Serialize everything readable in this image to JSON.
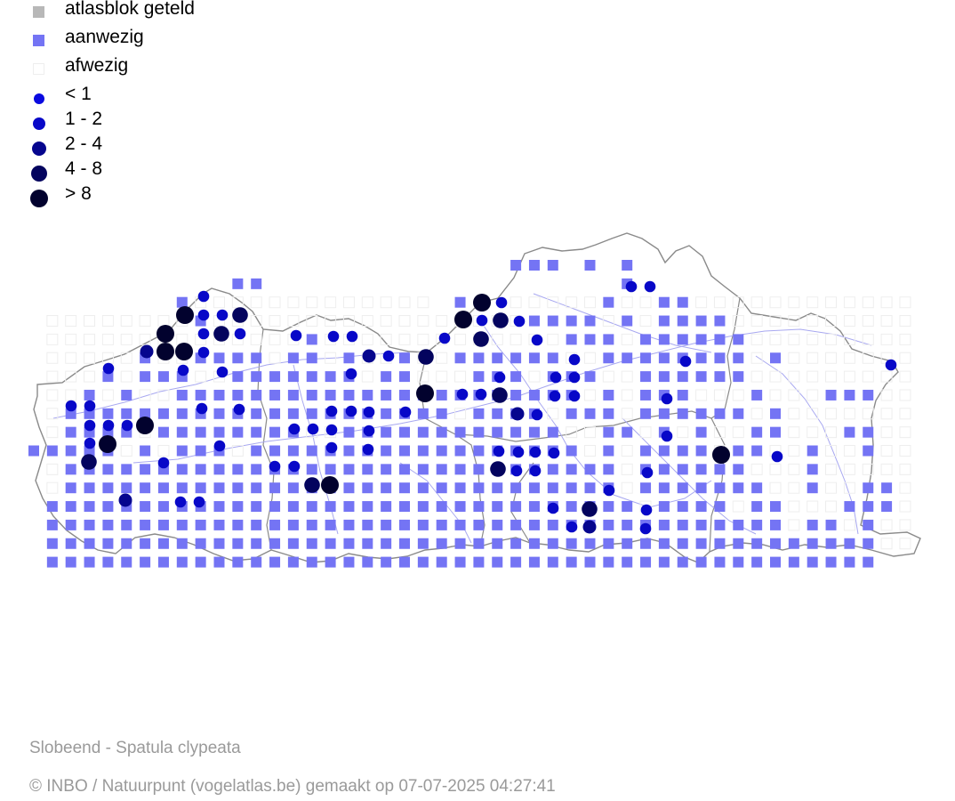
{
  "legend": {
    "items": [
      {
        "label": "atlasblok geteld",
        "symbol": "square",
        "color": "#b8b8b8"
      },
      {
        "label": "aanwezig",
        "symbol": "square",
        "color": "#7474f4"
      },
      {
        "label": "afwezig",
        "symbol": "square-outline",
        "color": "#eeeeee"
      },
      {
        "label": "< 1",
        "symbol": "circle",
        "color": "#0a0ae0",
        "size_class": 1
      },
      {
        "label": "1 - 2",
        "symbol": "circle",
        "color": "#0808c8",
        "size_class": 2
      },
      {
        "label": "2 - 4",
        "symbol": "circle",
        "color": "#06068e",
        "size_class": 3
      },
      {
        "label": "4 - 8",
        "symbol": "circle",
        "color": "#04045e",
        "size_class": 4
      },
      {
        "label": "> 8",
        "symbol": "circle",
        "color": "#02022e",
        "size_class": 5
      }
    ]
  },
  "map": {
    "region_outline_color": "#8a8a8a",
    "river_color": "#a8a8f0",
    "present_color": "#7474f4"
  },
  "footer": {
    "species": "Slobeend - Spatula clypeata",
    "credit": "© INBO / Natuurpunt (vogelatlas.be) gemaakt op 07-07-2025 04:27:41"
  }
}
